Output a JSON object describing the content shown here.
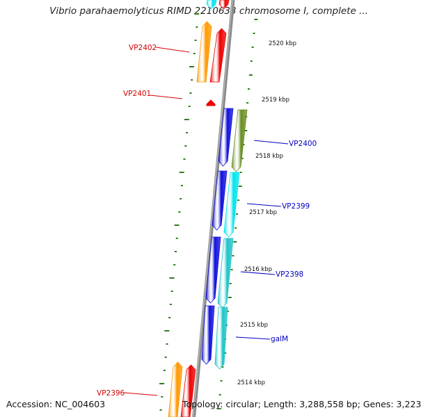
{
  "title": "Vibrio parahaemolyticus RIMD 2210633 chromosome I, complete ...",
  "accession_text": "Accession: NC_004603",
  "summary_text": "Topology: circular; Length: 3,288,558 bp; Genes: 3,223",
  "colors": {
    "backbone": "#8a8a8a",
    "ticks": "#2e7d1e",
    "label_forward": "#d40000",
    "label_reverse": "#0000c0",
    "orange": "#ff9900",
    "red": "#ee0000",
    "blue": "#1010dd",
    "cyan": "#00e5ee",
    "teal": "#1fc4c8",
    "olive": "#6b8e23"
  },
  "scale_ticks": [
    "2520 kbp",
    "2519 kbp",
    "2518 kbp",
    "2517 kbp",
    "2516 kbp",
    "2515 kbp",
    "2514 kbp"
  ],
  "gene_labels": [
    {
      "text": "VP2402",
      "strand": "forward"
    },
    {
      "text": "VP2401",
      "strand": "forward"
    },
    {
      "text": "VP2400",
      "strand": "reverse"
    },
    {
      "text": "VP2399",
      "strand": "reverse"
    },
    {
      "text": "VP2398",
      "strand": "reverse"
    },
    {
      "text": "galM",
      "strand": "reverse"
    },
    {
      "text": "VP2396",
      "strand": "forward"
    }
  ]
}
